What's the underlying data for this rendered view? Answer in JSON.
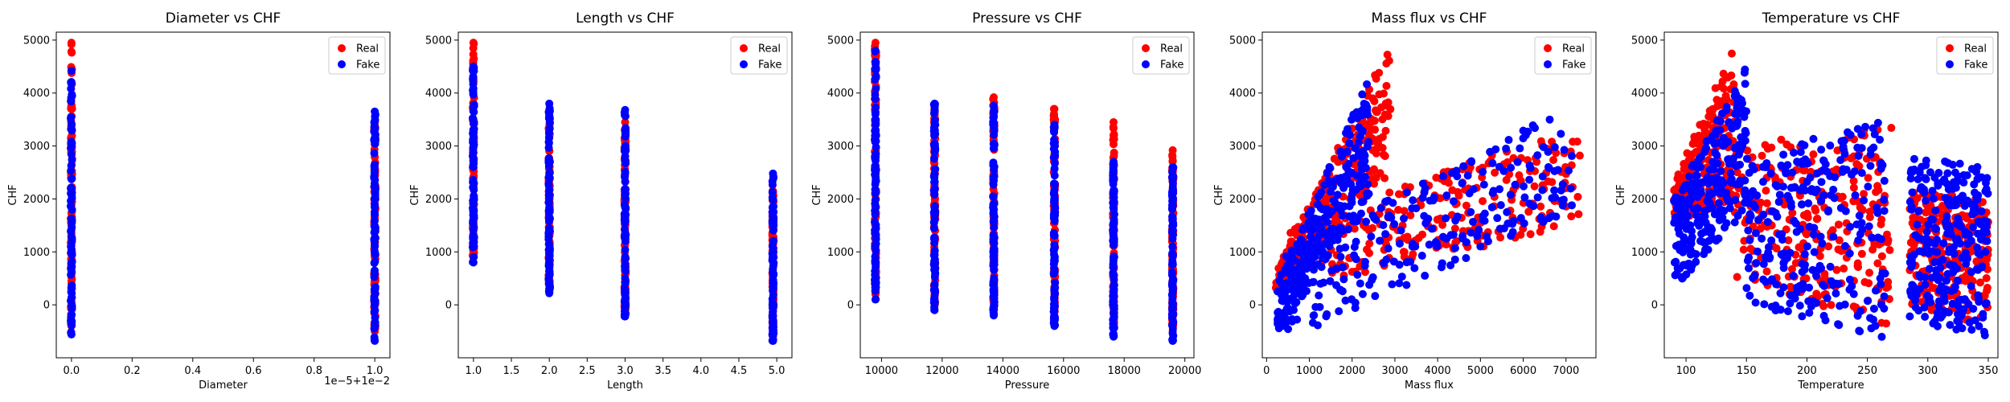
{
  "chart_data": [
    {
      "type": "scatter",
      "title": "Diameter vs CHF",
      "xlabel": "Diameter",
      "ylabel": "CHF",
      "xlim": [
        -0.05,
        1.05
      ],
      "ylim": [
        -1000,
        5150
      ],
      "x_ticks": [
        0,
        0.2,
        0.4,
        0.6,
        0.8,
        1.0
      ],
      "x_tick_labels": [
        "0.0",
        "0.2",
        "0.4",
        "0.6",
        "0.8",
        "1.0"
      ],
      "y_ticks": [
        0,
        1000,
        2000,
        3000,
        4000,
        5000
      ],
      "y_tick_labels": [
        "0",
        "1000",
        "2000",
        "3000",
        "4000",
        "5000"
      ],
      "offset_text": "1e−5+1e−2",
      "legend": {
        "position": "top-right"
      },
      "series": [
        {
          "name": "Real",
          "color": "#ff0000",
          "clusters": [
            {
              "x": 0.0,
              "ymin": -400,
              "ymax": 4950
            },
            {
              "x": 1.0,
              "ymin": -500,
              "ymax": 3450
            }
          ]
        },
        {
          "name": "Fake",
          "color": "#0000ff",
          "clusters": [
            {
              "x": 0.0,
              "ymin": -560,
              "ymax": 4420
            },
            {
              "x": 1.0,
              "ymin": -680,
              "ymax": 3650
            }
          ]
        }
      ]
    },
    {
      "type": "scatter",
      "title": "Length vs CHF",
      "xlabel": "Length",
      "ylabel": "CHF",
      "xlim": [
        0.8,
        5.2
      ],
      "ylim": [
        -1000,
        5150
      ],
      "x_ticks": [
        1.0,
        1.5,
        2.0,
        2.5,
        3.0,
        3.5,
        4.0,
        4.5,
        5.0
      ],
      "x_tick_labels": [
        "1.0",
        "1.5",
        "2.0",
        "2.5",
        "3.0",
        "3.5",
        "4.0",
        "4.5",
        "5.0"
      ],
      "y_ticks": [
        0,
        1000,
        2000,
        3000,
        4000,
        5000
      ],
      "y_tick_labels": [
        "0",
        "1000",
        "2000",
        "3000",
        "4000",
        "5000"
      ],
      "legend": {
        "position": "top-right"
      },
      "series": [
        {
          "name": "Real",
          "color": "#ff0000",
          "clusters": [
            {
              "x": 1.0,
              "ymin": 900,
              "ymax": 4950
            },
            {
              "x": 2.0,
              "ymin": 300,
              "ymax": 3550
            },
            {
              "x": 3.0,
              "ymin": -150,
              "ymax": 3450
            },
            {
              "x": 4.95,
              "ymin": -600,
              "ymax": 2150
            }
          ]
        },
        {
          "name": "Fake",
          "color": "#0000ff",
          "clusters": [
            {
              "x": 1.0,
              "ymin": 800,
              "ymax": 4500
            },
            {
              "x": 2.0,
              "ymin": 220,
              "ymax": 3800
            },
            {
              "x": 3.0,
              "ymin": -220,
              "ymax": 3680
            },
            {
              "x": 4.95,
              "ymin": -680,
              "ymax": 2480
            }
          ]
        }
      ]
    },
    {
      "type": "scatter",
      "title": "Pressure vs CHF",
      "xlabel": "Pressure",
      "ylabel": "CHF",
      "xlim": [
        9300,
        20300
      ],
      "ylim": [
        -1000,
        5150
      ],
      "x_ticks": [
        10000,
        12000,
        14000,
        16000,
        18000,
        20000
      ],
      "x_tick_labels": [
        "10000",
        "12000",
        "14000",
        "16000",
        "18000",
        "20000"
      ],
      "y_ticks": [
        0,
        1000,
        2000,
        3000,
        4000,
        5000
      ],
      "y_tick_labels": [
        "0",
        "1000",
        "2000",
        "3000",
        "4000",
        "5000"
      ],
      "legend": {
        "position": "top-right"
      },
      "series": [
        {
          "name": "Real",
          "color": "#ff0000",
          "clusters": [
            {
              "x": 9800,
              "ymin": 200,
              "ymax": 4950
            },
            {
              "x": 11750,
              "ymin": 0,
              "ymax": 3700
            },
            {
              "x": 13700,
              "ymin": -100,
              "ymax": 3920
            },
            {
              "x": 15700,
              "ymin": -300,
              "ymax": 3700
            },
            {
              "x": 17650,
              "ymin": -400,
              "ymax": 3450
            },
            {
              "x": 19600,
              "ymin": -500,
              "ymax": 2920
            }
          ]
        },
        {
          "name": "Fake",
          "color": "#0000ff",
          "clusters": [
            {
              "x": 9800,
              "ymin": 100,
              "ymax": 4800
            },
            {
              "x": 11750,
              "ymin": -100,
              "ymax": 3800
            },
            {
              "x": 13700,
              "ymin": -200,
              "ymax": 3760
            },
            {
              "x": 15700,
              "ymin": -400,
              "ymax": 3400
            },
            {
              "x": 17650,
              "ymin": -600,
              "ymax": 2700
            },
            {
              "x": 19600,
              "ymin": -680,
              "ymax": 2600
            }
          ]
        }
      ]
    },
    {
      "type": "scatter",
      "title": "Mass flux vs CHF",
      "xlabel": "Mass flux",
      "ylabel": "CHF",
      "xlim": [
        -100,
        7700
      ],
      "ylim": [
        -1000,
        5150
      ],
      "x_ticks": [
        0,
        1000,
        2000,
        3000,
        4000,
        5000,
        6000,
        7000
      ],
      "x_tick_labels": [
        "0",
        "1000",
        "2000",
        "3000",
        "4000",
        "5000",
        "6000",
        "7000"
      ],
      "y_ticks": [
        0,
        1000,
        2000,
        3000,
        4000,
        5000
      ],
      "y_tick_labels": [
        "0",
        "1000",
        "2000",
        "3000",
        "4000",
        "5000"
      ],
      "legend": {
        "position": "top-right"
      },
      "series": [
        {
          "name": "Real",
          "color": "#ff0000",
          "bands": [
            {
              "x0": 200,
              "y0a": 200,
              "y0b": 600,
              "x1": 2900,
              "y1a": 2500,
              "y1b": 4950
            },
            {
              "x0": 500,
              "y0a": 300,
              "y0b": 1400,
              "x1": 7400,
              "y1a": 1500,
              "y1b": 3500
            }
          ]
        },
        {
          "name": "Fake",
          "color": "#0000ff",
          "bands": [
            {
              "x0": 250,
              "y0a": -600,
              "y0b": 400,
              "x1": 2400,
              "y1a": 2000,
              "y1b": 4300
            },
            {
              "x0": 400,
              "y0a": -700,
              "y0b": 1000,
              "x1": 7200,
              "y1a": 1800,
              "y1b": 3800
            }
          ]
        }
      ]
    },
    {
      "type": "scatter",
      "title": "Temperature vs CHF",
      "xlabel": "Temperature",
      "ylabel": "CHF",
      "xlim": [
        82,
        358
      ],
      "ylim": [
        -1000,
        5150
      ],
      "x_ticks": [
        100,
        150,
        200,
        250,
        300,
        350
      ],
      "x_tick_labels": [
        "100",
        "150",
        "200",
        "250",
        "300",
        "350"
      ],
      "y_ticks": [
        0,
        1000,
        2000,
        3000,
        4000,
        5000
      ],
      "y_tick_labels": [
        "0",
        "1000",
        "2000",
        "3000",
        "4000",
        "5000"
      ],
      "legend": {
        "position": "top-right"
      },
      "series": [
        {
          "name": "Real",
          "color": "#ff0000",
          "bands": [
            {
              "x0": 90,
              "y0a": 1500,
              "y0b": 2300,
              "x1": 140,
              "y1a": 2000,
              "y1b": 4950
            },
            {
              "x0": 140,
              "y0a": 500,
              "y0b": 3000,
              "x1": 270,
              "y1a": -500,
              "y1b": 3400
            },
            {
              "x0": 285,
              "y0a": 0,
              "y0b": 2200,
              "x1": 350,
              "y1a": -400,
              "y1b": 2000
            }
          ]
        },
        {
          "name": "Fake",
          "color": "#0000ff",
          "bands": [
            {
              "x0": 90,
              "y0a": 300,
              "y0b": 2000,
              "x1": 150,
              "y1a": 1800,
              "y1b": 4500
            },
            {
              "x0": 150,
              "y0a": 0,
              "y0b": 2800,
              "x1": 265,
              "y1a": -680,
              "y1b": 3500
            },
            {
              "x0": 285,
              "y0a": -300,
              "y0b": 2800,
              "x1": 350,
              "y1a": -600,
              "y1b": 2700
            }
          ]
        }
      ]
    }
  ]
}
